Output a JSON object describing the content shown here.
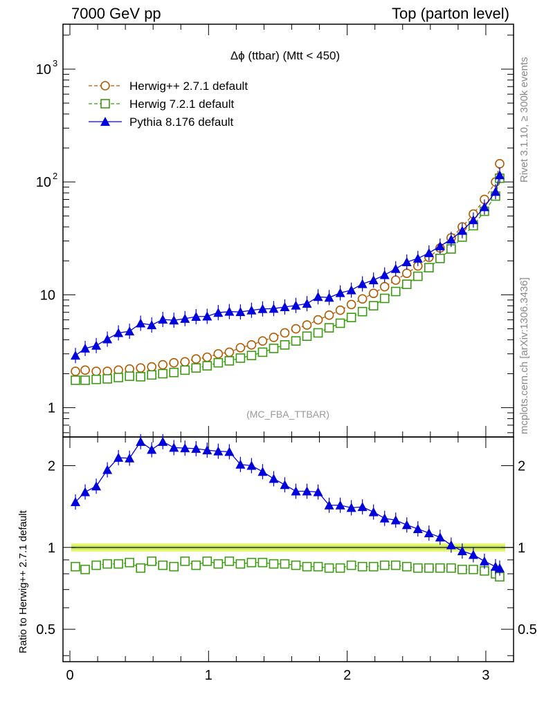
{
  "header": {
    "left": "7000 GeV pp",
    "right": "Top (parton level)"
  },
  "side_labels": {
    "rivet": "Rivet 3.1.10, ≥ 300k events",
    "mcplots": "mcplots.cern.ch [arXiv:1306.3436]"
  },
  "chart_data": [
    {
      "type": "line",
      "panel": "main",
      "title": "Δϕ (ttbar) (Mtt < 450)",
      "watermark": "(MC_FBA_TTBAR)",
      "xlabel": "",
      "ylabel": "",
      "yscale": "log",
      "xlim": [
        -0.05,
        3.2
      ],
      "ylim": [
        0.55,
        2500
      ],
      "y_ticks": [
        {
          "value": 1,
          "label": "1"
        },
        {
          "value": 10,
          "label": "10"
        },
        {
          "value": 100,
          "label": "10",
          "exp": "2"
        },
        {
          "value": 1000,
          "label": "10",
          "exp": "3"
        }
      ],
      "legend_position": "top-left",
      "x": [
        0.04,
        0.11,
        0.19,
        0.27,
        0.35,
        0.43,
        0.51,
        0.59,
        0.67,
        0.75,
        0.83,
        0.91,
        0.99,
        1.07,
        1.15,
        1.23,
        1.31,
        1.39,
        1.47,
        1.55,
        1.63,
        1.71,
        1.79,
        1.87,
        1.95,
        2.03,
        2.11,
        2.19,
        2.27,
        2.35,
        2.43,
        2.51,
        2.59,
        2.67,
        2.75,
        2.83,
        2.91,
        2.99,
        3.07,
        3.1
      ],
      "series": [
        {
          "name": "Herwig++ 2.7.1 default",
          "color": "#b35a00",
          "marker": "circle-open",
          "line": "dashed",
          "values": [
            2.1,
            2.15,
            2.1,
            2.1,
            2.15,
            2.2,
            2.25,
            2.3,
            2.4,
            2.5,
            2.55,
            2.7,
            2.8,
            3.0,
            3.1,
            3.4,
            3.6,
            3.9,
            4.2,
            4.6,
            5.0,
            5.4,
            6.0,
            6.6,
            7.3,
            8.2,
            9.2,
            10.3,
            11.8,
            13.5,
            15.5,
            18.0,
            21.5,
            26.0,
            32.0,
            40.0,
            52.0,
            70.0,
            100.0,
            145.0
          ]
        },
        {
          "name": "Herwig 7.2.1 default",
          "color": "#3a9a10",
          "marker": "square-open",
          "line": "dashed",
          "values": [
            1.75,
            1.75,
            1.78,
            1.8,
            1.85,
            1.9,
            1.88,
            1.95,
            2.0,
            2.05,
            2.15,
            2.25,
            2.35,
            2.5,
            2.6,
            2.75,
            2.9,
            3.1,
            3.35,
            3.6,
            3.9,
            4.3,
            4.6,
            5.1,
            5.6,
            6.3,
            7.1,
            8.0,
            9.3,
            10.7,
            12.4,
            14.6,
            17.4,
            21.0,
            25.5,
            32.5,
            41.0,
            55.0,
            75.0,
            108.0
          ]
        },
        {
          "name": "Pythia 8.176 default",
          "color": "#0000dd",
          "marker": "triangle-filled",
          "line": "solid",
          "values": [
            2.9,
            3.35,
            3.55,
            4.05,
            4.6,
            4.75,
            5.6,
            5.4,
            6.05,
            5.95,
            6.15,
            6.4,
            6.45,
            6.95,
            7.1,
            7.05,
            7.3,
            7.5,
            7.55,
            7.8,
            8.05,
            8.35,
            9.6,
            9.45,
            10.4,
            11.0,
            12.5,
            13.5,
            15.0,
            17.0,
            19.5,
            21.0,
            23.5,
            27.0,
            31.0,
            37.0,
            46.0,
            60.0,
            82.0,
            115.0
          ]
        }
      ]
    },
    {
      "type": "line",
      "panel": "ratio",
      "xlabel": "",
      "ylabel": "Ratio to Herwig++ 2.7.1 default",
      "yscale": "log",
      "xlim": [
        -0.05,
        3.2
      ],
      "ylim": [
        0.38,
        2.55
      ],
      "x_ticks": [
        0,
        1,
        2,
        3
      ],
      "y_ticks": [
        {
          "value": 0.5,
          "label": "0.5"
        },
        {
          "value": 1,
          "label": "1"
        },
        {
          "value": 2,
          "label": "2"
        }
      ],
      "x": [
        0.04,
        0.11,
        0.19,
        0.27,
        0.35,
        0.43,
        0.51,
        0.59,
        0.67,
        0.75,
        0.83,
        0.91,
        0.99,
        1.07,
        1.15,
        1.23,
        1.31,
        1.39,
        1.47,
        1.55,
        1.63,
        1.71,
        1.79,
        1.87,
        1.95,
        2.03,
        2.11,
        2.19,
        2.27,
        2.35,
        2.43,
        2.51,
        2.59,
        2.67,
        2.75,
        2.83,
        2.91,
        2.99,
        3.07,
        3.1
      ],
      "series": [
        {
          "name": "Herwig++ 2.7.1 default",
          "color": "#000000",
          "band_color": "#e6f55a",
          "values": [
            1,
            1,
            1,
            1,
            1,
            1,
            1,
            1,
            1,
            1,
            1,
            1,
            1,
            1,
            1,
            1,
            1,
            1,
            1,
            1,
            1,
            1,
            1,
            1,
            1,
            1,
            1,
            1,
            1,
            1,
            1,
            1,
            1,
            1,
            1,
            1,
            1,
            1,
            1,
            1
          ]
        },
        {
          "name": "Herwig 7.2.1 default",
          "color": "#3a9a10",
          "marker": "square-open",
          "line": "dashed",
          "values": [
            0.85,
            0.83,
            0.86,
            0.87,
            0.87,
            0.88,
            0.84,
            0.89,
            0.86,
            0.85,
            0.89,
            0.86,
            0.89,
            0.87,
            0.89,
            0.87,
            0.88,
            0.88,
            0.87,
            0.87,
            0.86,
            0.85,
            0.85,
            0.84,
            0.84,
            0.86,
            0.85,
            0.85,
            0.86,
            0.86,
            0.85,
            0.84,
            0.84,
            0.84,
            0.84,
            0.83,
            0.83,
            0.82,
            0.8,
            0.78
          ]
        },
        {
          "name": "Pythia 8.176 default",
          "color": "#0000dd",
          "marker": "triangle-filled",
          "line": "solid",
          "values": [
            1.47,
            1.6,
            1.68,
            1.93,
            2.14,
            2.13,
            2.45,
            2.29,
            2.45,
            2.33,
            2.32,
            2.31,
            2.28,
            2.26,
            2.25,
            2.02,
            2.0,
            1.9,
            1.79,
            1.7,
            1.61,
            1.61,
            1.6,
            1.43,
            1.43,
            1.4,
            1.41,
            1.35,
            1.28,
            1.26,
            1.21,
            1.17,
            1.13,
            1.09,
            1.02,
            0.97,
            0.94,
            0.89,
            0.85,
            0.84
          ]
        }
      ]
    }
  ]
}
